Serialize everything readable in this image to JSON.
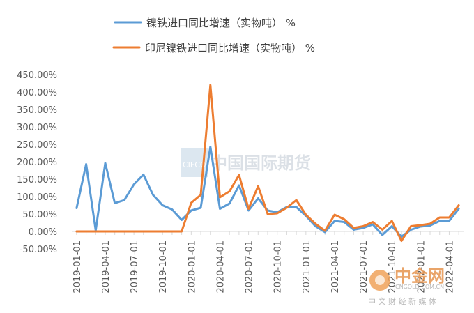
{
  "chart_data": {
    "type": "line",
    "title": "",
    "xlabel": "",
    "ylabel": "",
    "ylim": [
      -50,
      450
    ],
    "y_ticks": [
      "-50.00%",
      "0.00%",
      "50.00%",
      "100.00%",
      "150.00%",
      "200.00%",
      "250.00%",
      "300.00%",
      "350.00%",
      "400.00%",
      "450.00%"
    ],
    "x_ticks": [
      "2019-01-01",
      "2019-04-01",
      "2019-07-01",
      "2019-10-01",
      "2020-01-01",
      "2020-04-01",
      "2020-07-01",
      "2020-10-01",
      "2021-01-01",
      "2021-04-01",
      "2021-07-01",
      "2021-10-01",
      "2022-01-01",
      "2022-04-01"
    ],
    "x": [
      "2019-01-01",
      "2019-02-01",
      "2019-03-01",
      "2019-04-01",
      "2019-05-01",
      "2019-06-01",
      "2019-07-01",
      "2019-08-01",
      "2019-09-01",
      "2019-10-01",
      "2019-11-01",
      "2019-12-01",
      "2020-01-01",
      "2020-02-01",
      "2020-03-01",
      "2020-04-01",
      "2020-05-01",
      "2020-06-01",
      "2020-07-01",
      "2020-08-01",
      "2020-09-01",
      "2020-10-01",
      "2020-11-01",
      "2020-12-01",
      "2021-01-01",
      "2021-02-01",
      "2021-03-01",
      "2021-04-01",
      "2021-05-01",
      "2021-06-01",
      "2021-07-01",
      "2021-08-01",
      "2021-09-01",
      "2021-10-01",
      "2021-11-01",
      "2021-12-01",
      "2022-01-01",
      "2022-02-01",
      "2022-03-01",
      "2022-04-01",
      "2022-05-01"
    ],
    "grid": false,
    "legend_position": "top",
    "series": [
      {
        "name": "镍铁进口同比增速（实物吨） %",
        "color": "#5b9bd5",
        "values": [
          67,
          193,
          3,
          196,
          81,
          90,
          135,
          163,
          105,
          75,
          63,
          33,
          60,
          68,
          243,
          65,
          80,
          132,
          60,
          95,
          60,
          55,
          70,
          70,
          45,
          15,
          -2,
          30,
          27,
          5,
          10,
          20,
          -10,
          15,
          -15,
          5,
          14,
          17,
          30,
          30,
          65
        ]
      },
      {
        "name": "印尼镍铁进口同比增速（实物吨） %",
        "color": "#ed7d31",
        "values": [
          0,
          0,
          0,
          0,
          0,
          0,
          0,
          0,
          0,
          0,
          0,
          0,
          82,
          105,
          420,
          98,
          115,
          162,
          65,
          130,
          50,
          52,
          68,
          90,
          48,
          22,
          2,
          48,
          35,
          10,
          15,
          27,
          5,
          30,
          -27,
          15,
          18,
          22,
          40,
          40,
          75
        ]
      }
    ]
  },
  "watermarks": {
    "center_logo": "CIFCO",
    "center_text": "中国国际期货",
    "corner_brand": "中金网",
    "corner_domain": "CNGOLD.COM.CN",
    "corner_tagline": "中 文 财 经 新 媒 体"
  }
}
